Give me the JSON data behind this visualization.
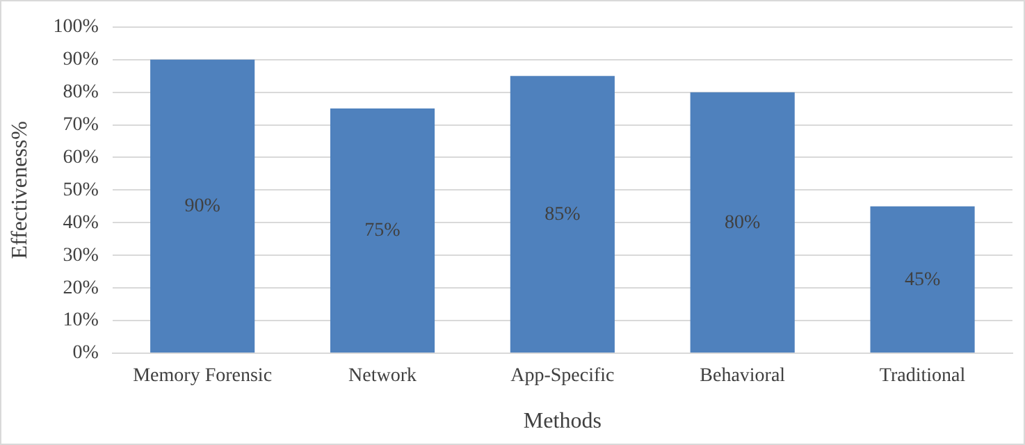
{
  "chart_data": {
    "type": "bar",
    "xlabel": "Methods",
    "ylabel": "Effectiveness%",
    "categories": [
      "Memory Forensic",
      "Network",
      "App-Specific",
      "Behavioral",
      "Traditional"
    ],
    "values": [
      90,
      75,
      85,
      80,
      45
    ],
    "color": "#4f81bd",
    "value_labels": [
      "90%",
      "75%",
      "85%",
      "80%",
      "45%"
    ],
    "ylim": [
      0,
      100
    ],
    "yticks": [
      {
        "value": 0,
        "label": "0%"
      },
      {
        "value": 10,
        "label": "10%"
      },
      {
        "value": 20,
        "label": "20%"
      },
      {
        "value": 30,
        "label": "30%"
      },
      {
        "value": 40,
        "label": "40%"
      },
      {
        "value": 50,
        "label": "50%"
      },
      {
        "value": 60,
        "label": "60%"
      },
      {
        "value": 70,
        "label": "70%"
      },
      {
        "value": 80,
        "label": "80%"
      },
      {
        "value": 90,
        "label": "90%"
      },
      {
        "value": 100,
        "label": "100%"
      }
    ],
    "grid": "y"
  }
}
